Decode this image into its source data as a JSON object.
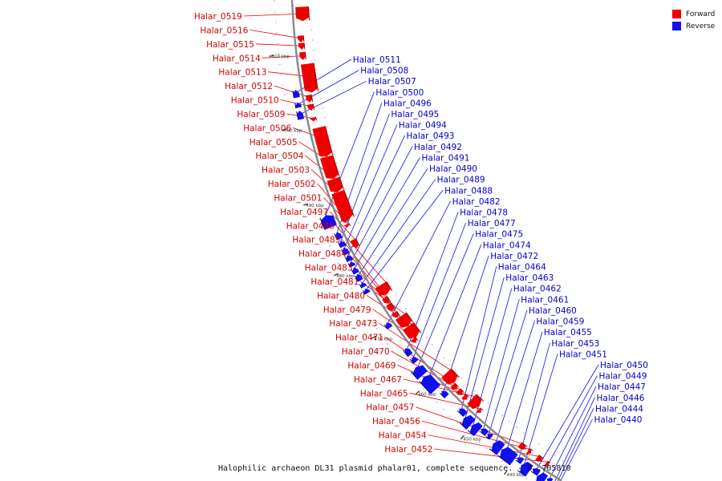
{
  "caption": "Halophilic archaeon DL31 plasmid phalar01, complete sequence. - 0..705810",
  "legend": [
    {
      "label": "Forward",
      "color": "#ee0000"
    },
    {
      "label": "Reverse",
      "color": "#1010ee"
    }
  ],
  "colors": {
    "forward": "#ee0000",
    "reverse": "#1010ee",
    "backbone": "#888888"
  },
  "ticks": [
    {
      "label": "510 kbp",
      "t": 0.085
    },
    {
      "label": "500 kbp",
      "t": 0.205
    },
    {
      "label": "490 kbp",
      "t": 0.335
    },
    {
      "label": "480 kbp",
      "t": 0.466
    },
    {
      "label": "470 kbp",
      "t": 0.593
    },
    {
      "label": "460 kbp",
      "t": 0.715
    },
    {
      "label": "450 kbp",
      "t": 0.823
    },
    {
      "label": "440 kbp",
      "t": 0.916
    }
  ],
  "forward_genes": [
    {
      "name": "Halar_0519",
      "t": 0.012,
      "len": 0.022,
      "tall": 1
    },
    {
      "name": "Halar_0516",
      "t": 0.058,
      "len": 0.01,
      "tall": 0
    },
    {
      "name": "Halar_0515",
      "t": 0.07,
      "len": 0.01,
      "tall": 0
    },
    {
      "name": "Halar_0514",
      "t": 0.085,
      "len": 0.012,
      "tall": 0
    },
    {
      "name": "Halar_0513",
      "t": 0.105,
      "len": 0.048,
      "tall": 1
    },
    {
      "name": "Halar_0512",
      "t": 0.157,
      "len": 0.012,
      "tall": 0
    },
    {
      "name": "Halar_0510",
      "t": 0.173,
      "len": 0.01,
      "tall": 0
    },
    {
      "name": "Halar_0509",
      "t": 0.196,
      "len": 0.006,
      "tall": 0
    },
    {
      "name": "Halar_0506",
      "t": 0.215,
      "len": 0.052,
      "tall": 1
    },
    {
      "name": "Halar_0505",
      "t": 0.268,
      "len": 0.04,
      "tall": 1
    },
    {
      "name": "Halar_0504",
      "t": 0.309,
      "len": 0.024,
      "tall": 1
    },
    {
      "name": "Halar_0503",
      "t": 0.334,
      "len": 0.052,
      "tall": 1
    },
    {
      "name": "Halar_0502",
      "t": 0.38,
      "len": 0.01,
      "tall": 0
    },
    {
      "name": "Halar_0501",
      "t": 0.394,
      "len": 0.005,
      "tall": 0
    },
    {
      "name": "Halar_0497",
      "t": 0.424,
      "len": 0.016,
      "tall": 0
    },
    {
      "name": "Halar_0486",
      "t": 0.521,
      "len": 0.02,
      "tall": 1
    },
    {
      "name": "Halar_0485",
      "t": 0.545,
      "len": 0.012,
      "tall": 0
    },
    {
      "name": "Halar_0484",
      "t": 0.559,
      "len": 0.014,
      "tall": 0
    },
    {
      "name": "Halar_0483",
      "t": 0.578,
      "len": 0.01,
      "tall": 0
    },
    {
      "name": "Halar_0481",
      "t": 0.59,
      "len": 0.022,
      "tall": 1
    },
    {
      "name": "Halar_0480",
      "t": 0.613,
      "len": 0.024,
      "tall": 1
    },
    {
      "name": "Halar_0479",
      "t": 0.637,
      "len": 0.008,
      "tall": 0
    },
    {
      "name": "Halar_0473",
      "t": 0.724,
      "len": 0.022,
      "tall": 1
    },
    {
      "name": "Halar_0471",
      "t": 0.748,
      "len": 0.01,
      "tall": 0
    },
    {
      "name": "Halar_0470",
      "t": 0.762,
      "len": 0.01,
      "tall": 0
    },
    {
      "name": "Halar_0469",
      "t": 0.776,
      "len": 0.008,
      "tall": 0
    },
    {
      "name": "Halar_0467",
      "t": 0.79,
      "len": 0.018,
      "tall": 1
    },
    {
      "name": "Halar_0465",
      "t": 0.812,
      "len": 0.006,
      "tall": 0
    },
    {
      "name": "Halar_0457",
      "t": 0.907,
      "len": 0.012,
      "tall": 0
    },
    {
      "name": "Halar_0456",
      "t": 0.925,
      "len": 0.006,
      "tall": 0
    },
    {
      "name": "Halar_0454",
      "t": 0.944,
      "len": 0.01,
      "tall": 0
    },
    {
      "name": "Halar_0452",
      "t": 0.962,
      "len": 0.006,
      "tall": 0
    }
  ],
  "reverse_genes": [
    {
      "name": "Halar_0511",
      "t": 0.145,
      "len": 0.012,
      "tall": 0
    },
    {
      "name": "Halar_0508",
      "t": 0.166,
      "len": 0.008,
      "tall": 0
    },
    {
      "name": "Halar_0507",
      "t": 0.18,
      "len": 0.014,
      "tall": 0
    },
    {
      "name": "Halar_0500",
      "t": 0.365,
      "len": 0.022,
      "tall": 1
    },
    {
      "name": "Halar_0496",
      "t": 0.4,
      "len": 0.012,
      "tall": 0
    },
    {
      "name": "Halar_0495",
      "t": 0.417,
      "len": 0.01,
      "tall": 0
    },
    {
      "name": "Halar_0494",
      "t": 0.43,
      "len": 0.012,
      "tall": 0
    },
    {
      "name": "Halar_0493",
      "t": 0.445,
      "len": 0.01,
      "tall": 0
    },
    {
      "name": "Halar_0492",
      "t": 0.458,
      "len": 0.008,
      "tall": 0
    },
    {
      "name": "Halar_0491",
      "t": 0.47,
      "len": 0.01,
      "tall": 0
    },
    {
      "name": "Halar_0490",
      "t": 0.483,
      "len": 0.012,
      "tall": 0
    },
    {
      "name": "Halar_0489",
      "t": 0.5,
      "len": 0.008,
      "tall": 0
    },
    {
      "name": "Halar_0488",
      "t": 0.513,
      "len": 0.008,
      "tall": 0
    },
    {
      "name": "Halar_0482",
      "t": 0.585,
      "len": 0.01,
      "tall": 0
    },
    {
      "name": "Halar_0478",
      "t": 0.642,
      "len": 0.014,
      "tall": 0
    },
    {
      "name": "Halar_0477",
      "t": 0.662,
      "len": 0.01,
      "tall": 0
    },
    {
      "name": "Halar_0475",
      "t": 0.68,
      "len": 0.018,
      "tall": 1
    },
    {
      "name": "Halar_0474",
      "t": 0.702,
      "len": 0.03,
      "tall": 1
    },
    {
      "name": "Halar_0472",
      "t": 0.742,
      "len": 0.012,
      "tall": 0
    },
    {
      "name": "Halar_0464",
      "t": 0.786,
      "len": 0.014,
      "tall": 0
    },
    {
      "name": "Halar_0463",
      "t": 0.803,
      "len": 0.016,
      "tall": 1
    },
    {
      "name": "Halar_0462",
      "t": 0.822,
      "len": 0.014,
      "tall": 1
    },
    {
      "name": "Halar_0461",
      "t": 0.838,
      "len": 0.012,
      "tall": 0
    },
    {
      "name": "Halar_0460",
      "t": 0.852,
      "len": 0.008,
      "tall": 0
    },
    {
      "name": "Halar_0459",
      "t": 0.87,
      "len": 0.016,
      "tall": 1
    },
    {
      "name": "Halar_0455",
      "t": 0.888,
      "len": 0.026,
      "tall": 1
    },
    {
      "name": "Halar_0453",
      "t": 0.917,
      "len": 0.01,
      "tall": 0
    },
    {
      "name": "Halar_0451",
      "t": 0.93,
      "len": 0.016,
      "tall": 1
    },
    {
      "name": "Halar_0450",
      "t": 0.949,
      "len": 0.012,
      "tall": 0
    },
    {
      "name": "Halar_0449",
      "t": 0.962,
      "len": 0.014,
      "tall": 1
    },
    {
      "name": "Halar_0447",
      "t": 0.978,
      "len": 0.008,
      "tall": 0
    },
    {
      "name": "Halar_0446",
      "t": 0.988,
      "len": 0.008,
      "tall": 0
    },
    {
      "name": "Halar_0444",
      "t": 0.994,
      "len": 0.004,
      "tall": 0
    },
    {
      "name": "Halar_0440",
      "t": 0.999,
      "len": 0.004,
      "tall": 0
    }
  ]
}
